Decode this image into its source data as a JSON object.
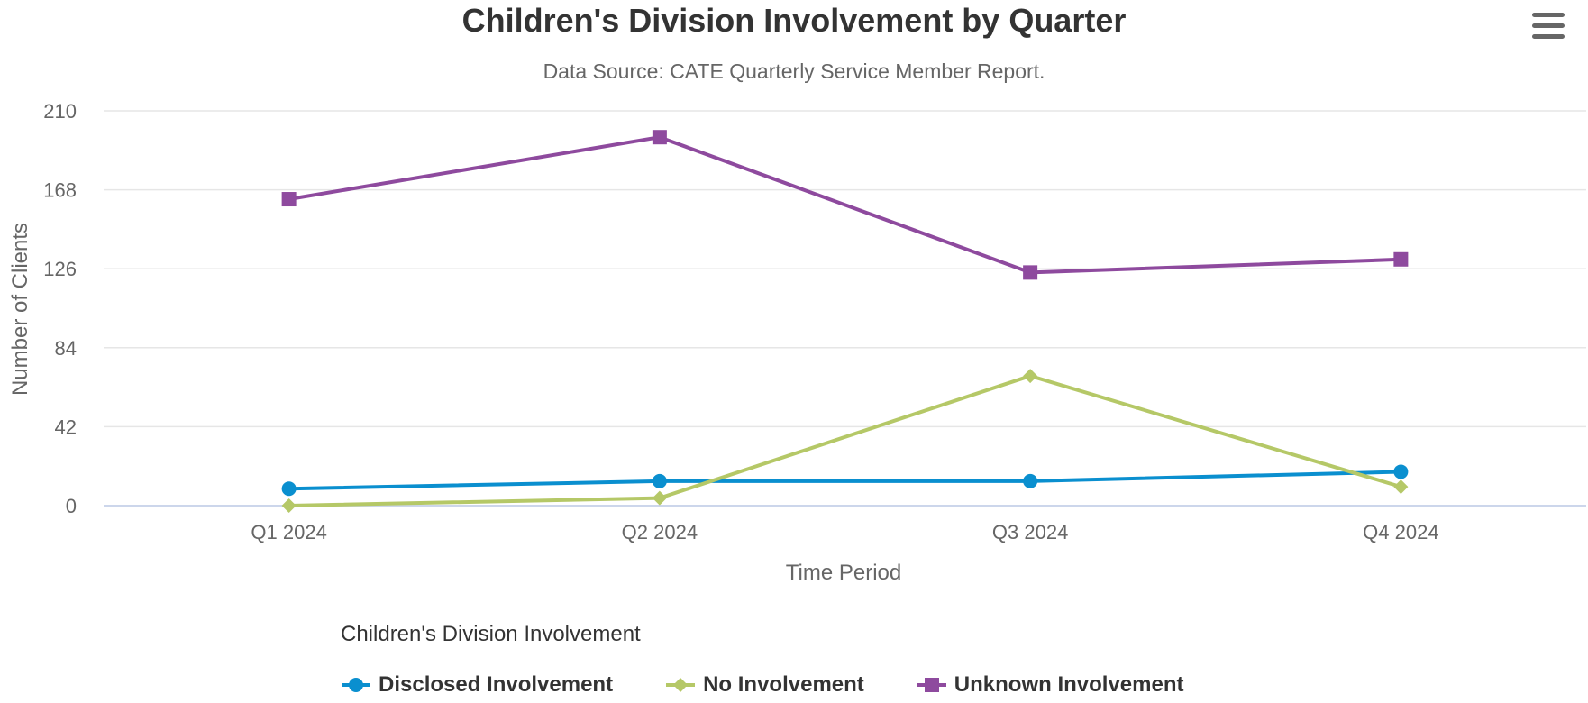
{
  "chart_data": {
    "type": "line",
    "title": "Children's Division Involvement by Quarter",
    "subtitle": "Data Source: CATE Quarterly Service Member Report.",
    "xlabel": "Time Period",
    "ylabel": "Number of Clients",
    "categories": [
      "Q1 2024",
      "Q2 2024",
      "Q3 2024",
      "Q4 2024"
    ],
    "ylim": [
      0,
      210
    ],
    "yticks": [
      0,
      42,
      84,
      126,
      168,
      210
    ],
    "grid": true,
    "legend_title": "Children's Division Involvement",
    "legend_position": "bottom",
    "series": [
      {
        "name": "Disclosed Involvement",
        "values": [
          9,
          13,
          13,
          18
        ],
        "color": "#0a8fcf",
        "marker": "circle"
      },
      {
        "name": "No Involvement",
        "values": [
          0,
          4,
          69,
          10
        ],
        "color": "#b5c867",
        "marker": "diamond"
      },
      {
        "name": "Unknown Involvement",
        "values": [
          163,
          196,
          124,
          131
        ],
        "color": "#8e4a9e",
        "marker": "square"
      }
    ]
  }
}
